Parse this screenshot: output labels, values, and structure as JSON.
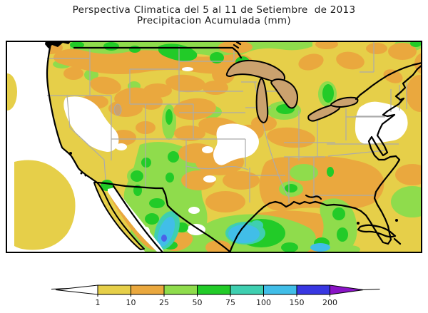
{
  "title": {
    "line1": "Perspectiva Climatica del 5 al 11 de Setiembre  de 2013",
    "line2": "Precipitacion Acumulada (mm)"
  },
  "legend": {
    "unit": "mm",
    "tick_labels": [
      "1",
      "10",
      "25",
      "50",
      "75",
      "100",
      "150",
      "200"
    ],
    "band_colors": [
      "#E6CF49",
      "#EAA83E",
      "#8FDC4C",
      "#22CB28",
      "#3ECFB0",
      "#41BEE8",
      "#3837E2"
    ],
    "below_min_color": "#FFFFFF",
    "above_max_color": "#8A14C6",
    "bins": [
      {
        "range": "<1",
        "color": "#FFFFFF"
      },
      {
        "range": "1-10",
        "color": "#E6CF49"
      },
      {
        "range": "10-25",
        "color": "#EAA83E"
      },
      {
        "range": "25-50",
        "color": "#8FDC4C"
      },
      {
        "range": "50-75",
        "color": "#22CB28"
      },
      {
        "range": "75-100",
        "color": "#3ECFB0"
      },
      {
        "range": "100-150",
        "color": "#41BEE8"
      },
      {
        "range": "150-200",
        "color": "#3837E2"
      },
      {
        "range": ">200",
        "color": "#8A14C6"
      }
    ]
  },
  "map_palette": {
    "background_yellow": "#E6CF49",
    "orange": "#EAA83E",
    "light_green": "#8FDC4C",
    "green": "#22CB28",
    "teal": "#3ECFB0",
    "cyan": "#41BEE8",
    "blue": "#4A63E8",
    "lakes_tan": "#CBA26E",
    "state_borders_gray": "#ABABAB",
    "coastline_black": "#000000",
    "no_data_white": "#FFFFFF"
  }
}
